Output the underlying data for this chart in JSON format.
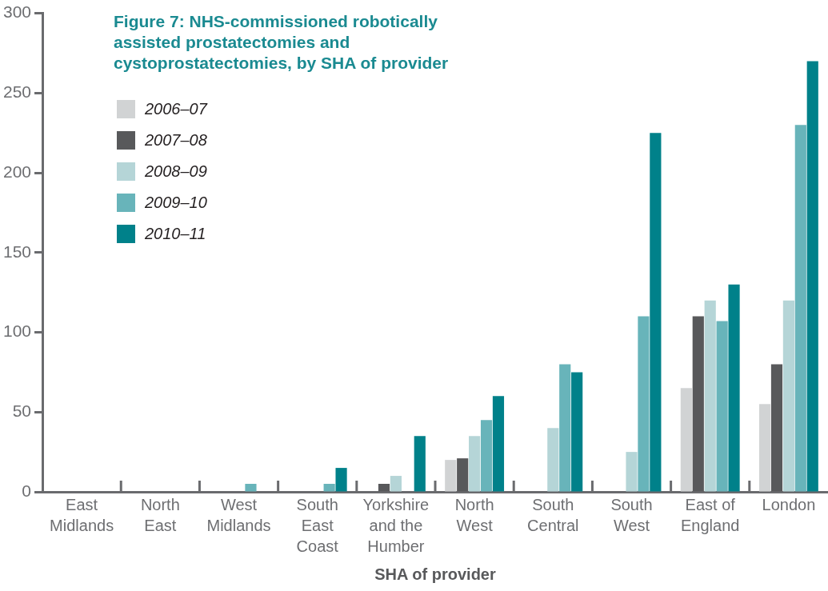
{
  "chart_data": {
    "type": "bar",
    "title": "Figure 7: NHS-commissioned robotically assisted prostatectomies and cystoprostatectomies, by SHA of provider",
    "xlabel": "SHA of provider",
    "categories": [
      "East Midlands",
      "North East",
      "West Midlands",
      "South East Coast",
      "Yorkshire and the Humber",
      "North West",
      "South Central",
      "South West",
      "East of England",
      "London"
    ],
    "series": [
      {
        "name": "2006–07",
        "color": "#d1d3d4",
        "values": [
          null,
          null,
          null,
          null,
          null,
          20,
          null,
          null,
          65,
          55
        ]
      },
      {
        "name": "2007–08",
        "color": "#58595b",
        "values": [
          null,
          null,
          null,
          null,
          5,
          21,
          null,
          null,
          110,
          80
        ]
      },
      {
        "name": "2008–09",
        "color": "#b5d5d7",
        "values": [
          null,
          null,
          null,
          null,
          10,
          35,
          40,
          25,
          120,
          120
        ]
      },
      {
        "name": "2009–10",
        "color": "#68b4ba",
        "values": [
          null,
          null,
          5,
          5,
          null,
          45,
          80,
          110,
          107,
          230
        ]
      },
      {
        "name": "2010–11",
        "color": "#00818a",
        "values": [
          null,
          null,
          null,
          15,
          35,
          60,
          75,
          225,
          130,
          270
        ]
      }
    ],
    "ylim": [
      0,
      300
    ],
    "yticks": [
      0,
      50,
      100,
      150,
      200,
      250,
      300
    ],
    "grid": false,
    "legend": "top left"
  }
}
